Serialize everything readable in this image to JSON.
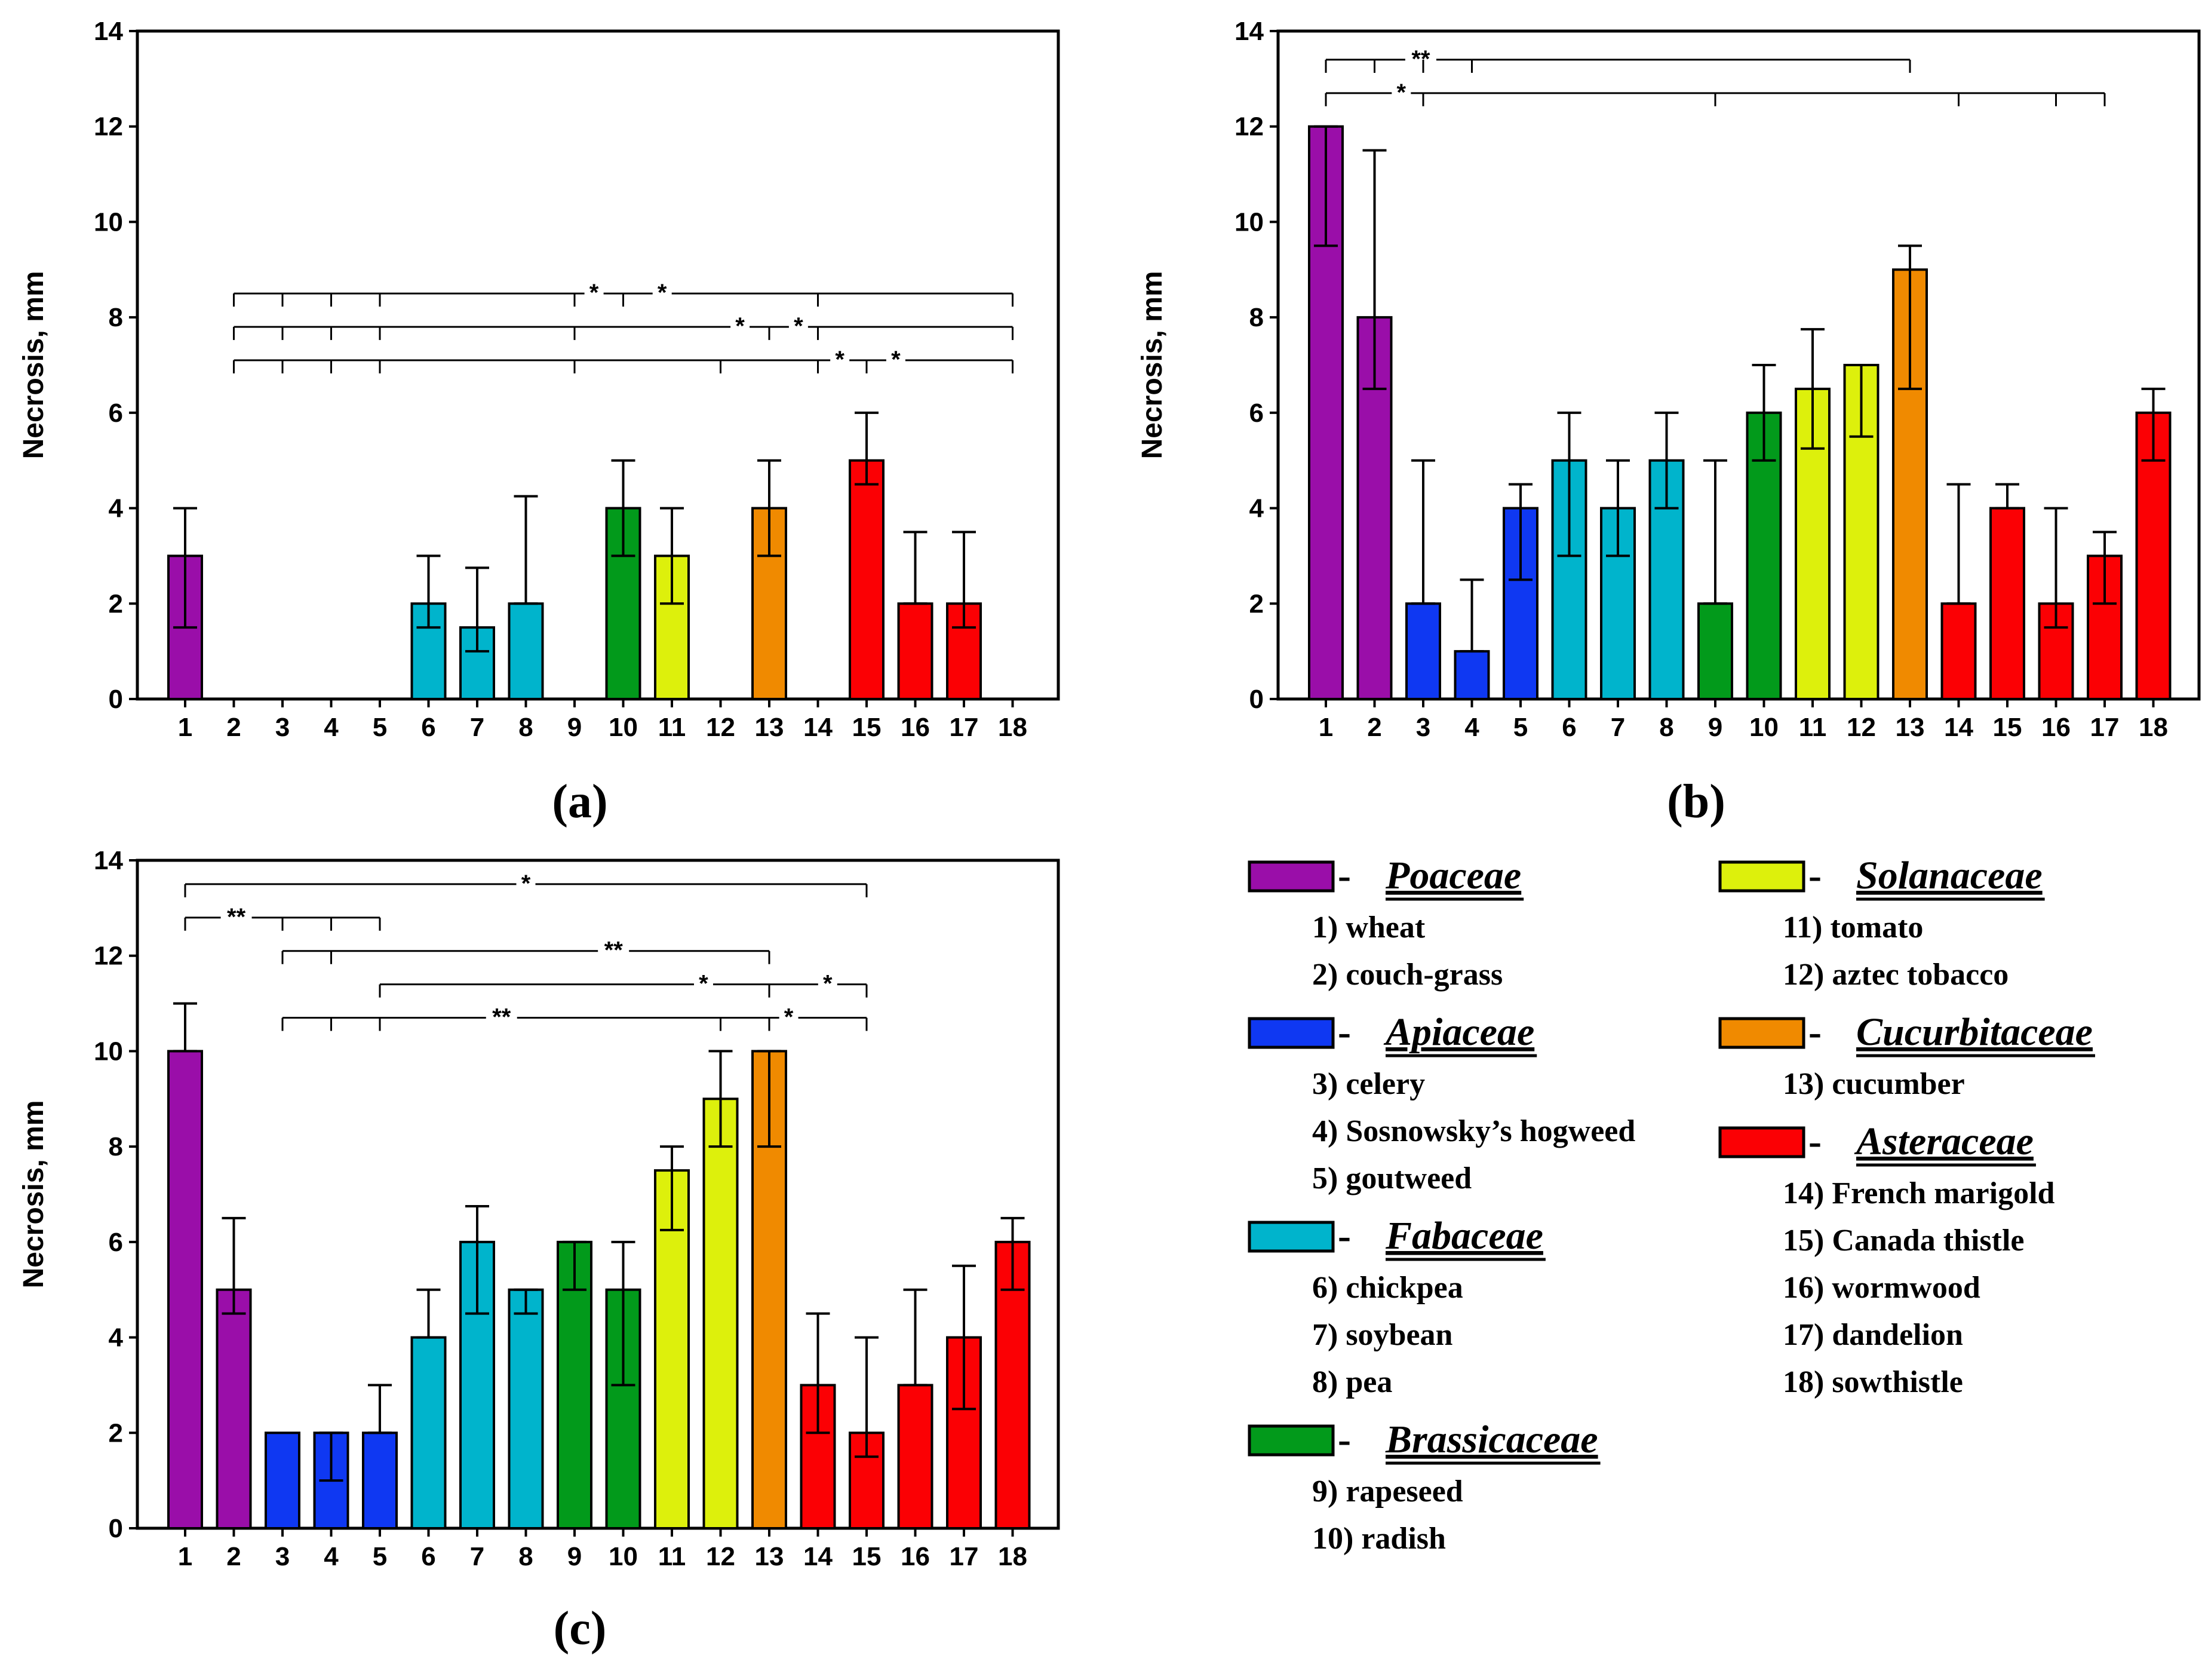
{
  "colors": {
    "Poaceae": "#9a0ea9",
    "Apiaceae": "#0f38f2",
    "Fabaceae": "#00b4cc",
    "Brassicaceae": "#029a1b",
    "Solanaceae": "#ddf00c",
    "Cucurbitaceae": "#f08a00",
    "Asteraceae": "#fb0004"
  },
  "species_family": [
    "Poaceae",
    "Poaceae",
    "Apiaceae",
    "Apiaceae",
    "Apiaceae",
    "Fabaceae",
    "Fabaceae",
    "Fabaceae",
    "Brassicaceae",
    "Brassicaceae",
    "Solanaceae",
    "Solanaceae",
    "Cucurbitaceae",
    "Asteraceae",
    "Asteraceae",
    "Asteraceae",
    "Asteraceae",
    "Asteraceae"
  ],
  "chart_data": [
    {
      "panel_label": "(a)",
      "type": "bar",
      "ylabel": "Necrosis, mm",
      "ylim": [
        0,
        14
      ],
      "yticks": [
        "0",
        "2",
        "4",
        "6",
        "8",
        "10",
        "12",
        "14"
      ],
      "categories": [
        "1",
        "2",
        "3",
        "4",
        "5",
        "6",
        "7",
        "8",
        "9",
        "10",
        "11",
        "12",
        "13",
        "14",
        "15",
        "16",
        "17",
        "18"
      ],
      "values": [
        3,
        0,
        0,
        0,
        0,
        2,
        1.5,
        2,
        0,
        4,
        3,
        0,
        4,
        0,
        5,
        2,
        2,
        0
      ],
      "err_low": [
        1.5,
        0,
        0,
        0,
        0,
        1.5,
        1,
        2,
        0,
        3,
        2,
        0,
        3,
        0,
        4.5,
        2,
        1.5,
        0
      ],
      "err_high": [
        4,
        0,
        0,
        0,
        0,
        3,
        2.75,
        4.25,
        0,
        5,
        4,
        0,
        5,
        0,
        6,
        3.5,
        3.5,
        0
      ],
      "significance": [
        {
          "y": 8.5,
          "start": 2,
          "end": 18,
          "ticks": [
            3,
            4,
            5,
            9,
            10,
            14
          ],
          "labels": [
            {
              "text": "*",
              "at": 9.4
            },
            {
              "text": "*",
              "at": 10.8
            }
          ]
        },
        {
          "y": 7.8,
          "start": 2,
          "end": 18,
          "ticks": [
            3,
            4,
            5,
            9,
            13,
            14
          ],
          "labels": [
            {
              "text": "*",
              "at": 12.4
            },
            {
              "text": "*",
              "at": 13.6
            }
          ]
        },
        {
          "y": 7.1,
          "start": 2,
          "end": 18,
          "ticks": [
            3,
            4,
            5,
            9,
            12,
            14,
            15
          ],
          "labels": [
            {
              "text": "*",
              "at": 14.45
            },
            {
              "text": "*",
              "at": 15.6
            }
          ]
        }
      ]
    },
    {
      "panel_label": "(b)",
      "type": "bar",
      "ylabel": "Necrosis, mm",
      "ylim": [
        0,
        14
      ],
      "yticks": [
        "0",
        "2",
        "4",
        "6",
        "8",
        "10",
        "12",
        "14"
      ],
      "categories": [
        "1",
        "2",
        "3",
        "4",
        "5",
        "6",
        "7",
        "8",
        "9",
        "10",
        "11",
        "12",
        "13",
        "14",
        "15",
        "16",
        "17",
        "18"
      ],
      "values": [
        12,
        8,
        2,
        1,
        4,
        5,
        4,
        5,
        2,
        6,
        6.5,
        7,
        9,
        2,
        4,
        2,
        3,
        6
      ],
      "err_low": [
        9.5,
        6.5,
        2,
        1,
        2.5,
        3,
        3,
        4,
        2,
        5,
        5.25,
        5.5,
        6.5,
        2,
        4,
        1.5,
        2,
        5
      ],
      "err_high": [
        12,
        11.5,
        5,
        2.5,
        4.5,
        6,
        5,
        6,
        5,
        7,
        7.75,
        7,
        9.5,
        4.5,
        4.5,
        4,
        3.5,
        6.5
      ],
      "significance": [
        {
          "y": 13.4,
          "start": 1,
          "end": 13,
          "ticks": [
            2,
            3,
            4
          ],
          "labels": [
            {
              "text": "**",
              "at": 2.95
            }
          ]
        },
        {
          "y": 12.7,
          "start": 1,
          "end": 17,
          "ticks": [
            3,
            9,
            14,
            16
          ],
          "labels": [
            {
              "text": "*",
              "at": 2.55
            }
          ]
        }
      ]
    },
    {
      "panel_label": "(c)",
      "type": "bar",
      "ylabel": "Necrosis, mm",
      "ylim": [
        0,
        14
      ],
      "yticks": [
        "0",
        "2",
        "4",
        "6",
        "8",
        "10",
        "12",
        "14"
      ],
      "categories": [
        "1",
        "2",
        "3",
        "4",
        "5",
        "6",
        "7",
        "8",
        "9",
        "10",
        "11",
        "12",
        "13",
        "14",
        "15",
        "16",
        "17",
        "18"
      ],
      "values": [
        10,
        5,
        2,
        2,
        2,
        4,
        6,
        5,
        6,
        5,
        7.5,
        9,
        10,
        3,
        2,
        3,
        4,
        6
      ],
      "err_low": [
        10,
        4.5,
        2,
        1,
        2,
        4,
        4.5,
        4.5,
        5,
        3,
        6.25,
        8,
        8,
        2,
        1.5,
        3,
        2.5,
        5
      ],
      "err_high": [
        11,
        6.5,
        2,
        2,
        3,
        5,
        6.75,
        5,
        6,
        6,
        8,
        10,
        10,
        4.5,
        4,
        5,
        5.5,
        6.5
      ],
      "significance": [
        {
          "y": 13.5,
          "start": 1,
          "end": 15,
          "ticks": [],
          "labels": [
            {
              "text": "*",
              "at": 8
            }
          ]
        },
        {
          "y": 12.8,
          "start": 1,
          "end": 5,
          "ticks": [
            3,
            4
          ],
          "labels": [
            {
              "text": "**",
              "at": 2.05
            }
          ]
        },
        {
          "y": 12.1,
          "start": 3,
          "end": 13,
          "ticks": [
            4
          ],
          "labels": [
            {
              "text": "**",
              "at": 9.8
            }
          ]
        },
        {
          "y": 11.4,
          "start": 5,
          "end": 15,
          "ticks": [
            13
          ],
          "labels": [
            {
              "text": "*",
              "at": 11.65
            },
            {
              "text": "*",
              "at": 14.2
            }
          ]
        },
        {
          "y": 10.7,
          "start": 3,
          "end": 15,
          "ticks": [
            4,
            5,
            12,
            13
          ],
          "labels": [
            {
              "text": "**",
              "at": 7.5
            },
            {
              "text": "*",
              "at": 13.4
            }
          ]
        }
      ]
    }
  ],
  "legend": {
    "left": [
      {
        "family": "Poaceae",
        "prefix": " - ",
        "species": [
          "1) wheat",
          "2) couch-grass"
        ]
      },
      {
        "family": "Apiaceae",
        "prefix": " - ",
        "species": [
          "3) celery",
          "4) Sosnowsky’s hogweed",
          "5) goutweed"
        ]
      },
      {
        "family": "Fabaceae",
        "prefix": "  - ",
        "species": [
          "6) chickpea",
          "7) soybean",
          "8) pea"
        ]
      },
      {
        "family": "Brassicaceae",
        "prefix": "  - ",
        "species": [
          "9) rapeseed",
          "10) radish"
        ]
      }
    ],
    "right": [
      {
        "family": "Solanaceae",
        "prefix": " - ",
        "species": [
          "11) tomato",
          "12) aztec tobacco"
        ]
      },
      {
        "family": "Cucurbitaceae",
        "prefix": " - ",
        "species": [
          "13) cucumber"
        ]
      },
      {
        "family": "Asteraceae",
        "prefix": " - ",
        "species": [
          "14) French marigold",
          "15) Canada thistle",
          "16) wormwood",
          "17) dandelion",
          "18) sowthistle"
        ]
      }
    ]
  }
}
